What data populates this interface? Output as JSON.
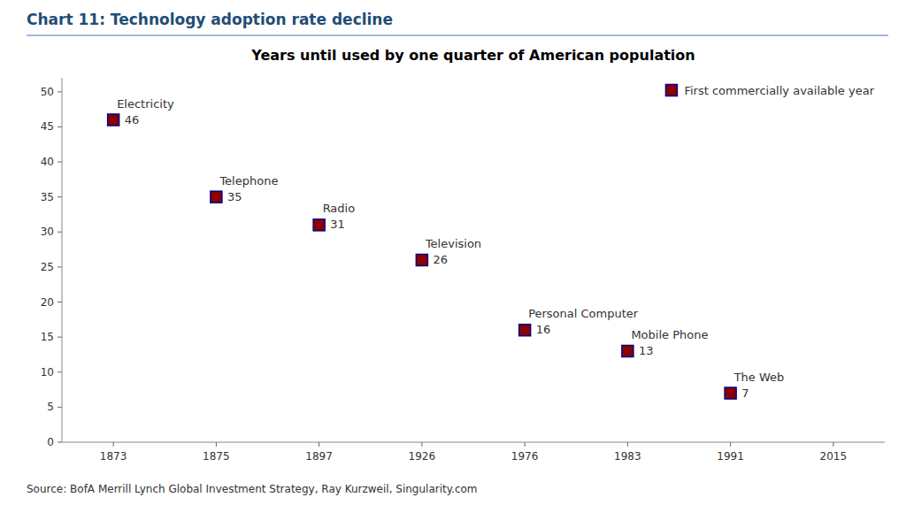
{
  "chart_data": {
    "type": "scatter",
    "title": "Chart 11: Technology adoption rate decline",
    "subtitle": "Years until used by one quarter of American population",
    "source": "Source: BofA Merrill Lynch Global  Investment Strategy, Ray Kurzweil, Singularity.com",
    "categories": [
      "1873",
      "1875",
      "1897",
      "1926",
      "1976",
      "1983",
      "1991",
      "2015"
    ],
    "series": [
      {
        "name": "First commercially available year",
        "color": "#8B0000",
        "marker": "square",
        "values": [
          46,
          35,
          31,
          26,
          16,
          13,
          7,
          null
        ]
      }
    ],
    "annotations": [
      "Electricity",
      "Telephone",
      "Radio",
      "Television",
      "Personal Computer",
      "Mobile Phone",
      "The Web"
    ],
    "ylim": [
      0,
      52
    ],
    "yticks": [
      0,
      5,
      10,
      15,
      20,
      25,
      30,
      35,
      40,
      45,
      50
    ],
    "grid": false,
    "legend": "upper right",
    "data_labels": true
  }
}
